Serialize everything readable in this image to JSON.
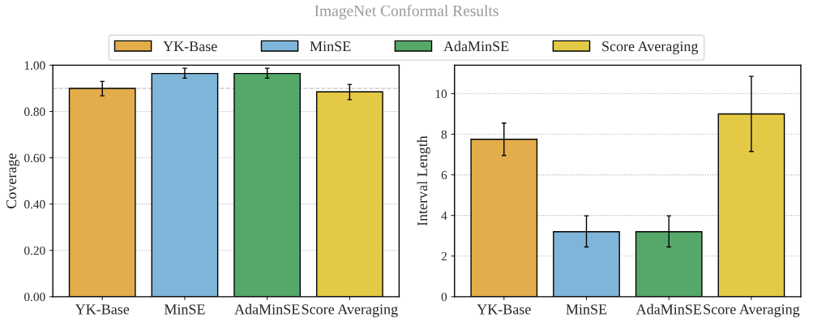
{
  "chart_data": [
    {
      "type": "bar",
      "title": "ImageNet Conformal Results",
      "ylabel": "Coverage",
      "categories": [
        "YK-Base",
        "MinSE",
        "AdaMinSE",
        "Score Averaging"
      ],
      "series": [
        {
          "name": "YK-Base",
          "color": "#e3ad4b",
          "values": [
            0.9,
            null,
            null,
            null
          ],
          "errors": [
            [
              0.868,
              0.93
            ],
            null,
            null,
            null
          ]
        },
        {
          "name": "MinSE",
          "color": "#7fb5d9",
          "values": [
            null,
            0.964,
            null,
            null
          ],
          "errors": [
            null,
            [
              0.944,
              0.987
            ],
            null,
            null
          ]
        },
        {
          "name": "AdaMinSE",
          "color": "#56a869",
          "values": [
            null,
            null,
            0.964,
            null
          ],
          "errors": [
            null,
            null,
            [
              0.944,
              0.987
            ],
            null
          ]
        },
        {
          "name": "Score Averaging",
          "color": "#e3c945",
          "values": [
            null,
            null,
            null,
            0.885
          ],
          "errors": [
            null,
            null,
            null,
            [
              0.851,
              0.917
            ]
          ]
        }
      ],
      "ylim": [
        0,
        1
      ],
      "yticks": [
        {
          "value": 0,
          "label": "0.00"
        },
        {
          "value": 0.2,
          "label": "0.20"
        },
        {
          "value": 0.4,
          "label": "0.40"
        },
        {
          "value": 0.6,
          "label": "0.60"
        },
        {
          "value": 0.8,
          "label": "0.80"
        },
        {
          "value": 1,
          "label": "1.00"
        }
      ],
      "ref_lines": [
        {
          "axis": "y",
          "value": 0.9,
          "color": "#cccccc",
          "line_style": "dashed"
        }
      ],
      "grid": "y",
      "legend": "top"
    },
    {
      "type": "bar",
      "ylabel": "Interval Length",
      "categories": [
        "YK-Base",
        "MinSE",
        "AdaMinSE",
        "Score Averaging"
      ],
      "series": [
        {
          "color": "#e3ad4b",
          "values": [
            7.75,
            null,
            null,
            null
          ],
          "errors": [
            [
              6.95,
              8.55
            ],
            null,
            null,
            null
          ]
        },
        {
          "color": "#7fb5d9",
          "values": [
            null,
            3.2,
            null,
            null
          ],
          "errors": [
            null,
            [
              2.45,
              3.98
            ],
            null,
            null
          ]
        },
        {
          "color": "#56a869",
          "values": [
            null,
            null,
            3.2,
            null
          ],
          "errors": [
            null,
            null,
            [
              2.45,
              3.98
            ],
            null
          ]
        },
        {
          "color": "#e3c945",
          "values": [
            null,
            null,
            null,
            9.0
          ],
          "errors": [
            null,
            null,
            null,
            [
              7.15,
              10.85
            ]
          ]
        }
      ],
      "ylim": [
        0,
        11.4
      ],
      "yticks": [
        0,
        2,
        4,
        6,
        8,
        10
      ],
      "grid": "y"
    }
  ]
}
